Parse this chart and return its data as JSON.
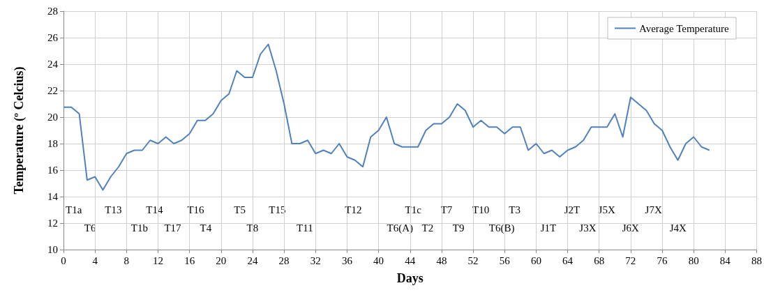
{
  "chart_data": {
    "type": "line",
    "xlabel": "Days",
    "ylabel": "Temperature (º Celcius)",
    "x": [
      0,
      1,
      2,
      3,
      4,
      5,
      6,
      7,
      8,
      9,
      10,
      11,
      12,
      13,
      14,
      15,
      16,
      17,
      18,
      19,
      20,
      21,
      22,
      23,
      24,
      25,
      26,
      27,
      28,
      29,
      30,
      31,
      32,
      33,
      34,
      35,
      36,
      37,
      38,
      39,
      40,
      41,
      42,
      43,
      44,
      45,
      46,
      47,
      48,
      49,
      50,
      51,
      52,
      53,
      54,
      55,
      56,
      57,
      58,
      59,
      60,
      61,
      62,
      63,
      64,
      65,
      66,
      67,
      68,
      69,
      70,
      71,
      72,
      73,
      74,
      75,
      76,
      77,
      78,
      79,
      80,
      81,
      82
    ],
    "series": [
      {
        "name": "Average Temperature",
        "color": "#4f81bd",
        "values": [
          20.75,
          20.75,
          20.25,
          15.25,
          15.5,
          14.5,
          15.5,
          16.25,
          17.25,
          17.5,
          17.5,
          18.25,
          18,
          18.5,
          18,
          18.25,
          18.75,
          19.75,
          19.75,
          20.25,
          21.25,
          21.75,
          23.5,
          23,
          23,
          24.75,
          25.5,
          23.5,
          21,
          18,
          18,
          18.25,
          17.25,
          17.5,
          17.25,
          18,
          17,
          16.75,
          16.25,
          18.5,
          19,
          20,
          18,
          17.75,
          17.75,
          17.75,
          19,
          19.5,
          19.5,
          20,
          21,
          20.5,
          19.25,
          19.75,
          19.25,
          19.25,
          18.75,
          19.25,
          19.25,
          17.5,
          18,
          17.25,
          17.5,
          17,
          17.5,
          17.75,
          18.25,
          19.25,
          19.25,
          19.25,
          20.25,
          18.5,
          21.5,
          21,
          20.5,
          19.5,
          19,
          17.75,
          16.75,
          18,
          18.5,
          17.75,
          17.5
        ]
      }
    ],
    "xlim": [
      0,
      88
    ],
    "xticks": [
      0,
      4,
      8,
      12,
      16,
      20,
      24,
      28,
      32,
      36,
      40,
      44,
      48,
      52,
      56,
      60,
      64,
      68,
      72,
      76,
      80,
      84,
      88
    ],
    "ylim": [
      10,
      28
    ],
    "yticks": [
      10,
      12,
      14,
      16,
      18,
      20,
      22,
      24,
      26,
      28
    ],
    "grid": true,
    "legend": "top right",
    "marker": "none",
    "line_style": "solid",
    "annotations": [
      "T1a",
      "T6",
      "T13",
      "T1b",
      "T14",
      "T17",
      "T16",
      "T4",
      "T5",
      "T8",
      "T15",
      "T11",
      "T12",
      "T6(A)",
      "T1c",
      "T2",
      "T7",
      "T9",
      "T10",
      "T6(B)",
      "T3",
      "J1T",
      "J2T",
      "J3X",
      "J5X",
      "J6X",
      "J7X",
      "J4X"
    ]
  }
}
